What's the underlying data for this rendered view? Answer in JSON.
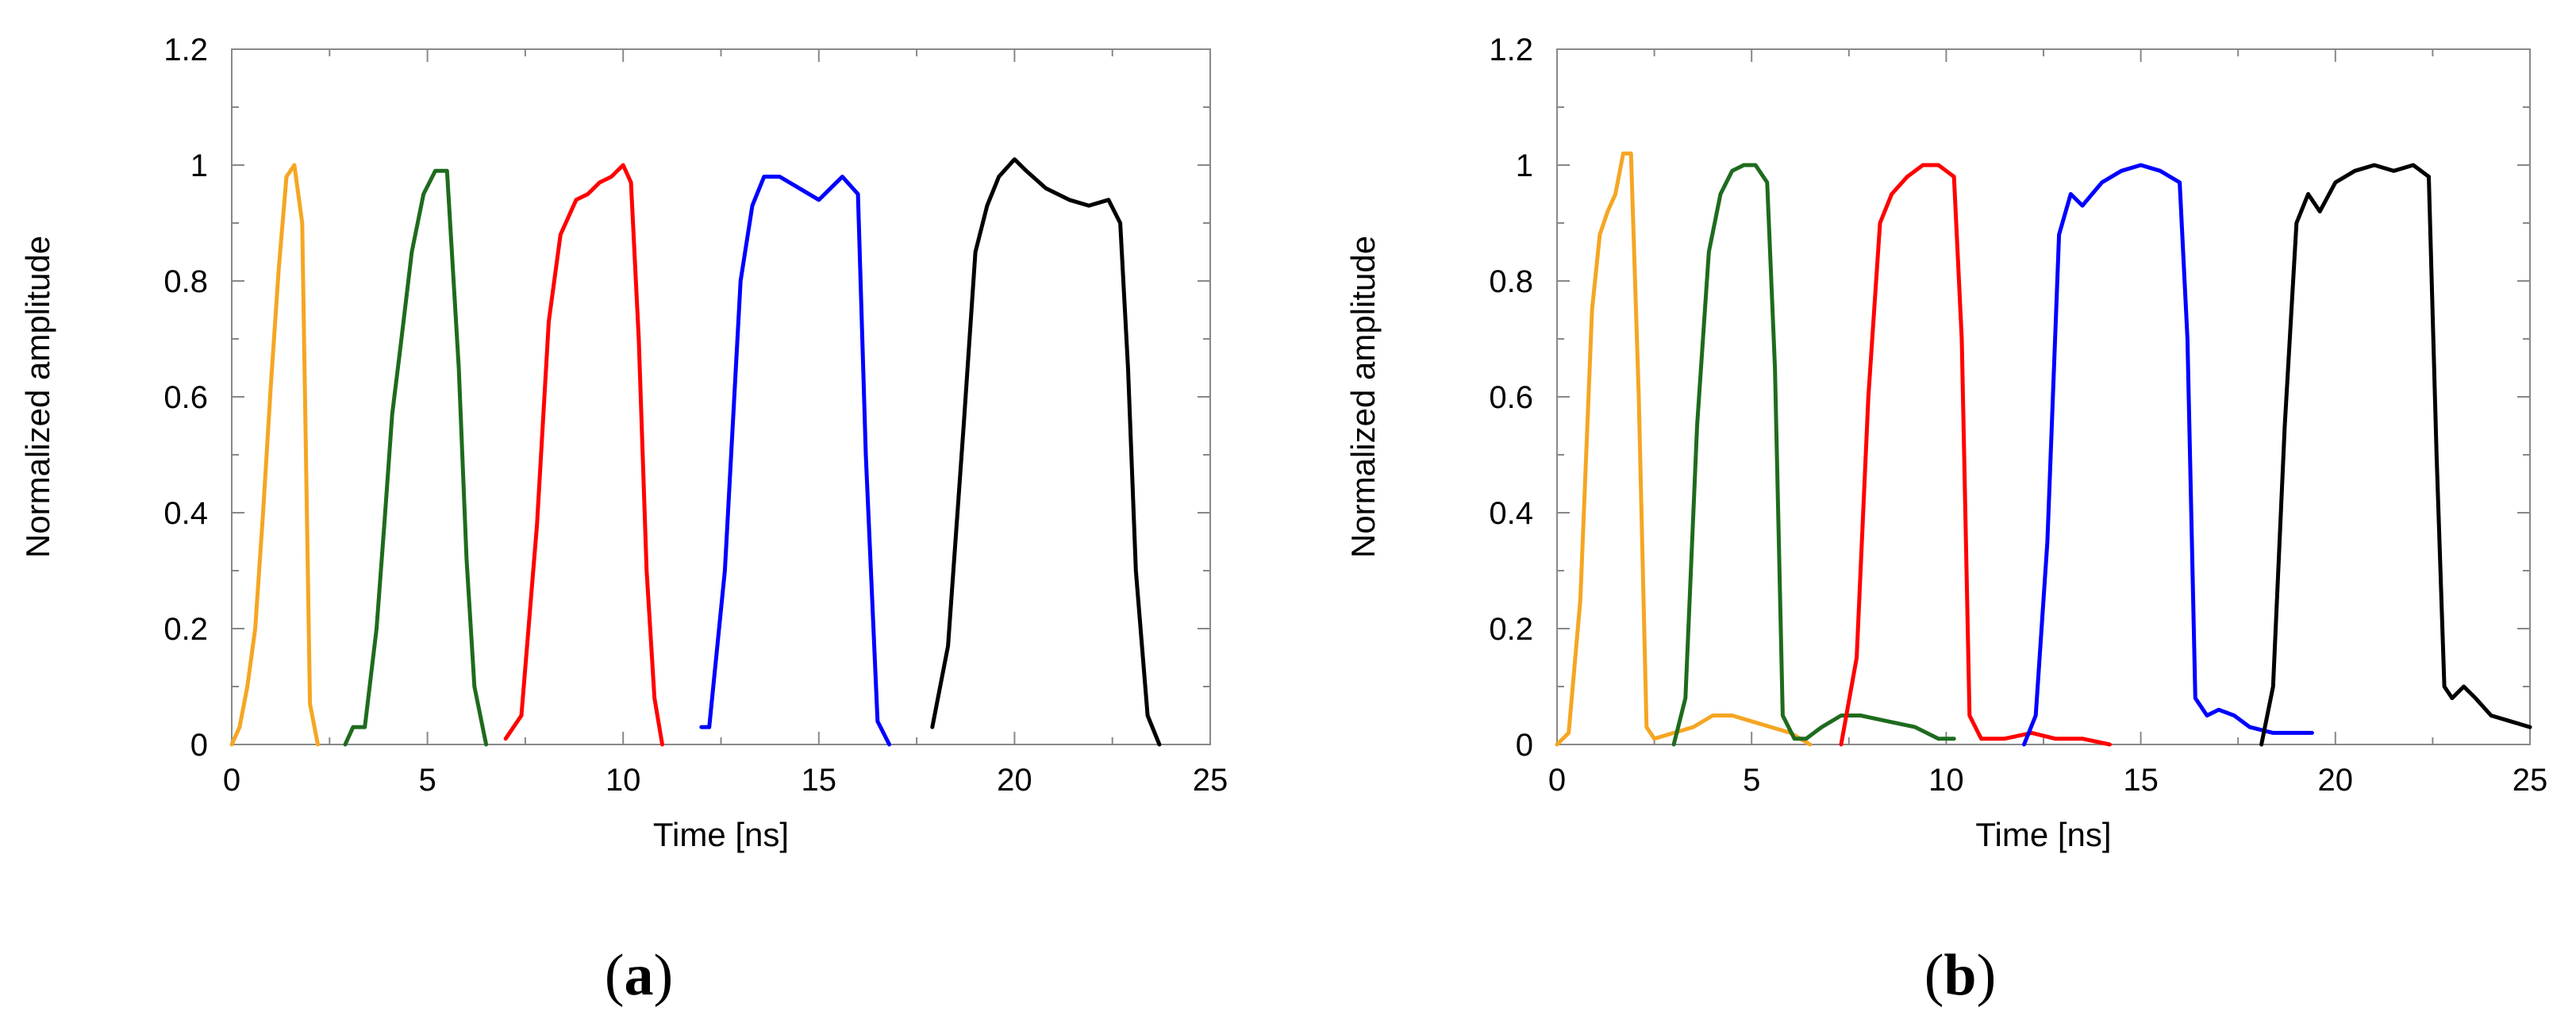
{
  "chart_data": [
    {
      "panel": "a",
      "panel_caption_open": "(",
      "panel_caption_letter": "a",
      "panel_caption_close": ")",
      "type": "line",
      "title": "",
      "xlabel": "Time [ns]",
      "ylabel": "Normalized amplitude",
      "xlim": [
        0,
        25
      ],
      "ylim": [
        0,
        1.2
      ],
      "xticks": [
        0,
        5,
        10,
        15,
        20,
        25
      ],
      "xtick_labels": [
        "0",
        "5",
        "10",
        "15",
        "20",
        "25"
      ],
      "yticks": [
        0,
        0.2,
        0.4,
        0.6,
        0.8,
        1,
        1.2
      ],
      "ytick_labels": [
        "0",
        "0.2",
        "0.4",
        "0.6",
        "0.8",
        "1",
        "1.2"
      ],
      "grid": false,
      "legend": false,
      "series": [
        {
          "name": "orange",
          "color": "#F5A623",
          "x": [
            0,
            0.2,
            0.4,
            0.6,
            0.8,
            1.0,
            1.2,
            1.4,
            1.6,
            1.8,
            2.0,
            2.2
          ],
          "y": [
            0,
            0.03,
            0.1,
            0.2,
            0.4,
            0.62,
            0.82,
            0.98,
            1.0,
            0.9,
            0.07,
            0
          ]
        },
        {
          "name": "green",
          "color": "#1E6B1E",
          "x": [
            2.9,
            3.1,
            3.4,
            3.7,
            3.9,
            4.1,
            4.3,
            4.6,
            4.9,
            5.2,
            5.5,
            5.8,
            6.0,
            6.2,
            6.5
          ],
          "y": [
            0,
            0.03,
            0.03,
            0.2,
            0.38,
            0.57,
            0.68,
            0.85,
            0.95,
            0.99,
            0.99,
            0.65,
            0.32,
            0.1,
            0
          ]
        },
        {
          "name": "red",
          "color": "#FF0000",
          "x": [
            7.0,
            7.4,
            7.8,
            8.1,
            8.4,
            8.8,
            9.1,
            9.4,
            9.7,
            10.0,
            10.2,
            10.4,
            10.6,
            10.8,
            11.0
          ],
          "y": [
            0.01,
            0.05,
            0.38,
            0.73,
            0.88,
            0.94,
            0.95,
            0.97,
            0.98,
            1.0,
            0.97,
            0.7,
            0.3,
            0.08,
            0
          ]
        },
        {
          "name": "blue",
          "color": "#0000FF",
          "x": [
            12.0,
            12.2,
            12.6,
            13.0,
            13.3,
            13.6,
            14.0,
            14.5,
            15.0,
            15.3,
            15.6,
            16.0,
            16.2,
            16.5,
            16.8
          ],
          "y": [
            0.03,
            0.03,
            0.3,
            0.8,
            0.93,
            0.98,
            0.98,
            0.96,
            0.94,
            0.96,
            0.98,
            0.95,
            0.5,
            0.04,
            0
          ]
        },
        {
          "name": "black",
          "color": "#000000",
          "x": [
            17.9,
            18.3,
            18.7,
            19.0,
            19.3,
            19.6,
            20.0,
            20.3,
            20.8,
            21.4,
            21.9,
            22.4,
            22.7,
            22.9,
            23.1,
            23.4,
            23.7
          ],
          "y": [
            0.03,
            0.17,
            0.55,
            0.85,
            0.93,
            0.98,
            1.01,
            0.99,
            0.96,
            0.94,
            0.93,
            0.94,
            0.9,
            0.65,
            0.3,
            0.05,
            0
          ]
        }
      ]
    },
    {
      "panel": "b",
      "panel_caption_open": "(",
      "panel_caption_letter": "b",
      "panel_caption_close": ")",
      "type": "line",
      "title": "",
      "xlabel": "Time [ns]",
      "ylabel": "Normalized amplitude",
      "xlim": [
        0,
        25
      ],
      "ylim": [
        0,
        1.2
      ],
      "xticks": [
        0,
        5,
        10,
        15,
        20,
        25
      ],
      "xtick_labels": [
        "0",
        "5",
        "10",
        "15",
        "20",
        "25"
      ],
      "yticks": [
        0,
        0.2,
        0.4,
        0.6,
        0.8,
        1,
        1.2
      ],
      "ytick_labels": [
        "0",
        "0.2",
        "0.4",
        "0.6",
        "0.8",
        "1",
        "1.2"
      ],
      "grid": false,
      "legend": false,
      "series": [
        {
          "name": "orange",
          "color": "#F5A623",
          "x": [
            0,
            0.3,
            0.6,
            0.9,
            1.1,
            1.3,
            1.5,
            1.7,
            1.9,
            2.1,
            2.3,
            2.5,
            3.0,
            3.5,
            4.0,
            4.5,
            5.0,
            5.5,
            6.0,
            6.5
          ],
          "y": [
            0,
            0.02,
            0.25,
            0.75,
            0.88,
            0.92,
            0.95,
            1.02,
            1.02,
            0.6,
            0.03,
            0.01,
            0.02,
            0.03,
            0.05,
            0.05,
            0.04,
            0.03,
            0.02,
            0
          ]
        },
        {
          "name": "green",
          "color": "#1E6B1E",
          "x": [
            3.0,
            3.3,
            3.6,
            3.9,
            4.2,
            4.5,
            4.8,
            5.1,
            5.4,
            5.6,
            5.8,
            6.1,
            6.4,
            6.8,
            7.3,
            7.8,
            8.5,
            9.2,
            9.8,
            10.2
          ],
          "y": [
            0.0,
            0.08,
            0.55,
            0.85,
            0.95,
            0.99,
            1.0,
            1.0,
            0.97,
            0.65,
            0.05,
            0.01,
            0.01,
            0.03,
            0.05,
            0.05,
            0.04,
            0.03,
            0.01,
            0.01
          ]
        },
        {
          "name": "red",
          "color": "#FF0000",
          "x": [
            7.3,
            7.7,
            8.0,
            8.3,
            8.6,
            9.0,
            9.4,
            9.8,
            10.2,
            10.4,
            10.6,
            10.9,
            11.5,
            12.2,
            12.8,
            13.5,
            14.2
          ],
          "y": [
            0.0,
            0.15,
            0.6,
            0.9,
            0.95,
            0.98,
            1.0,
            1.0,
            0.98,
            0.7,
            0.05,
            0.01,
            0.01,
            0.02,
            0.01,
            0.01,
            0.0
          ]
        },
        {
          "name": "blue",
          "color": "#0000FF",
          "x": [
            12.0,
            12.3,
            12.6,
            12.9,
            13.2,
            13.5,
            14.0,
            14.5,
            15.0,
            15.5,
            16.0,
            16.2,
            16.4,
            16.7,
            17.0,
            17.4,
            17.8,
            18.4,
            19.0,
            19.4
          ],
          "y": [
            0.0,
            0.05,
            0.35,
            0.88,
            0.95,
            0.93,
            0.97,
            0.99,
            1.0,
            0.99,
            0.97,
            0.7,
            0.08,
            0.05,
            0.06,
            0.05,
            0.03,
            0.02,
            0.02,
            0.02
          ]
        },
        {
          "name": "black",
          "color": "#000000",
          "x": [
            18.1,
            18.4,
            18.7,
            19.0,
            19.3,
            19.6,
            20.0,
            20.5,
            21.0,
            21.5,
            22.0,
            22.4,
            22.6,
            22.8,
            23.0,
            23.3,
            23.6,
            24.0,
            24.5,
            25.0
          ],
          "y": [
            0.0,
            0.1,
            0.55,
            0.9,
            0.95,
            0.92,
            0.97,
            0.99,
            1.0,
            0.99,
            1.0,
            0.98,
            0.5,
            0.1,
            0.08,
            0.1,
            0.08,
            0.05,
            0.04,
            0.03
          ]
        }
      ]
    }
  ]
}
